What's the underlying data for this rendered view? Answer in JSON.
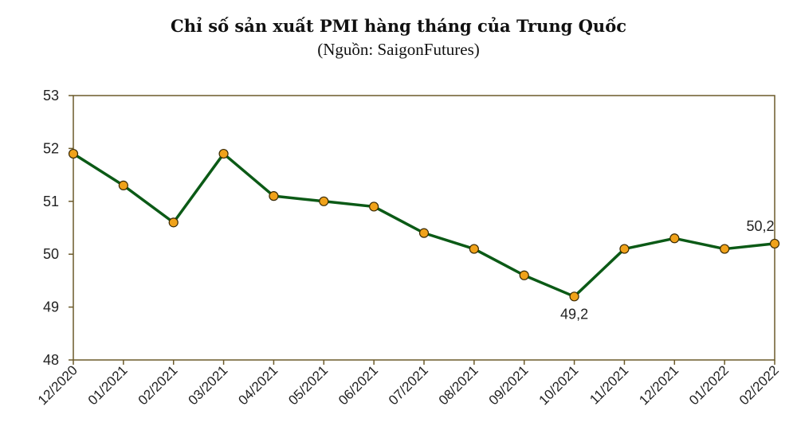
{
  "chart_data": {
    "type": "line",
    "title": "Chỉ số sản xuất PMI hàng tháng của Trung Quốc",
    "subtitle": "(Nguồn: SaigonFutures)",
    "categories": [
      "12/2020",
      "01/2021",
      "02/2021",
      "03/2021",
      "04/2021",
      "05/2021",
      "06/2021",
      "07/2021",
      "08/2021",
      "09/2021",
      "10/2021",
      "11/2021",
      "12/2021",
      "01/2022",
      "02/2022"
    ],
    "series": [
      {
        "values": [
          51.9,
          51.3,
          50.6,
          51.9,
          51.1,
          51.0,
          50.9,
          50.4,
          50.1,
          49.6,
          49.2,
          50.1,
          50.3,
          50.1,
          50.2
        ]
      }
    ],
    "ylim": [
      48,
      53
    ],
    "yticks": [
      48,
      49,
      50,
      51,
      52,
      53
    ],
    "data_labels": [
      {
        "index": 10,
        "text": "49,2",
        "position": "below"
      },
      {
        "index": 14,
        "text": "50,2",
        "position": "above"
      }
    ],
    "grid": false,
    "colors": {
      "line": "#0b5a16",
      "marker_fill": "#f0a21a",
      "marker_stroke": "#3a2a05",
      "frame": "#6b5a2a"
    }
  }
}
